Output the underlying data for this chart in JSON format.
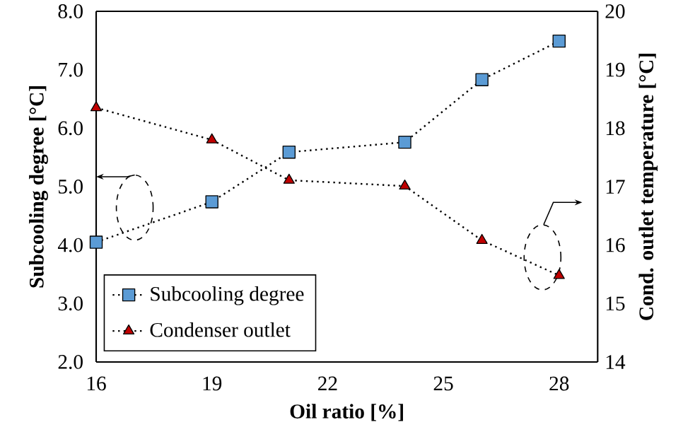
{
  "chart_data": {
    "type": "line",
    "xlabel": "Oil ratio [%]",
    "ylabel": "Subcooling degree [°C]",
    "y2label": "Cond. outlet temperature [°C]",
    "x": [
      16,
      19,
      21,
      24,
      26,
      28
    ],
    "series": [
      {
        "name": "Subcooling degree",
        "color": "#5b9bd5",
        "marker": "square",
        "values": [
          4.05,
          4.74,
          5.59,
          5.76,
          6.83,
          7.49
        ]
      },
      {
        "name": "Condenser outlet",
        "color": "#c00000",
        "marker": "triangle",
        "axis": "y2",
        "values": [
          18.35,
          17.8,
          17.11,
          17.01,
          16.08,
          15.48
        ]
      }
    ],
    "xlim": [
      16,
      29
    ],
    "xticks": [
      16,
      19,
      22,
      25,
      28
    ],
    "ylim": [
      2,
      8
    ],
    "yticks": [
      {
        "value": 2,
        "label": "2.0"
      },
      {
        "value": 3,
        "label": "3.0"
      },
      {
        "value": 4,
        "label": "4.0"
      },
      {
        "value": 5,
        "label": "5.0"
      },
      {
        "value": 6,
        "label": "6.0"
      },
      {
        "value": 7,
        "label": "7.0"
      },
      {
        "value": 8,
        "label": "8.0"
      }
    ],
    "y2lim": [
      14,
      20
    ],
    "y2ticks": [
      14,
      15,
      16,
      17,
      18,
      19,
      20
    ],
    "line_style": "dotted",
    "grid": false,
    "legend": "bottom left"
  }
}
